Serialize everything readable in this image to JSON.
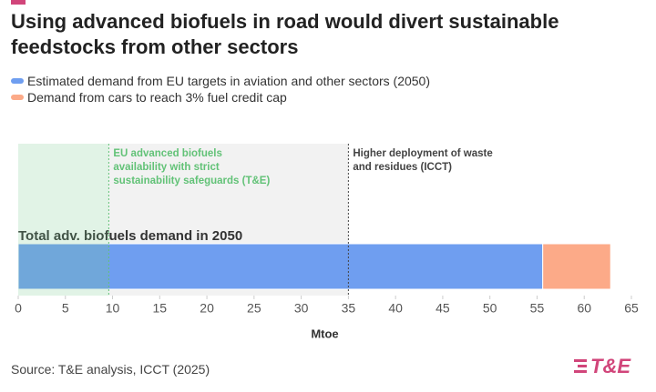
{
  "chart_data": {
    "type": "bar",
    "orientation": "horizontal",
    "stacked": true,
    "title": "Using advanced biofuels in road would divert sustainable feedstocks from other sectors",
    "categories": [
      "Total adv. biofuels demand in 2050"
    ],
    "series": [
      {
        "name": "Estimated demand from EU targets in aviation and other sectors (2050)",
        "color": "#6f9ef0",
        "values": [
          55.6
        ]
      },
      {
        "name": "Demand from cars to reach 3% fuel credit cap",
        "color": "#fcaa88",
        "values": [
          7.2
        ]
      }
    ],
    "xlim": [
      0,
      65
    ],
    "xticks": [
      0,
      5,
      10,
      15,
      20,
      25,
      30,
      35,
      40,
      45,
      50,
      55,
      60,
      65
    ],
    "xlabel": "Mtoe",
    "regions": [
      {
        "x": [
          0,
          9.6
        ],
        "color": "#78c88c"
      },
      {
        "x": [
          9.6,
          35
        ],
        "color": "#f2f2f2"
      }
    ],
    "annotations": [
      {
        "x": 9.6,
        "color": "#62c277",
        "lines": [
          "EU advanced biofuels",
          "availability with strict",
          "sustainability safeguards (T&E)"
        ]
      },
      {
        "x": 35,
        "color": "#444444",
        "lines": [
          "Higher deployment of waste",
          "and residues (ICCT)"
        ]
      }
    ],
    "source": "Source: T&E analysis, ICCT (2025)",
    "logo": "T&E"
  }
}
